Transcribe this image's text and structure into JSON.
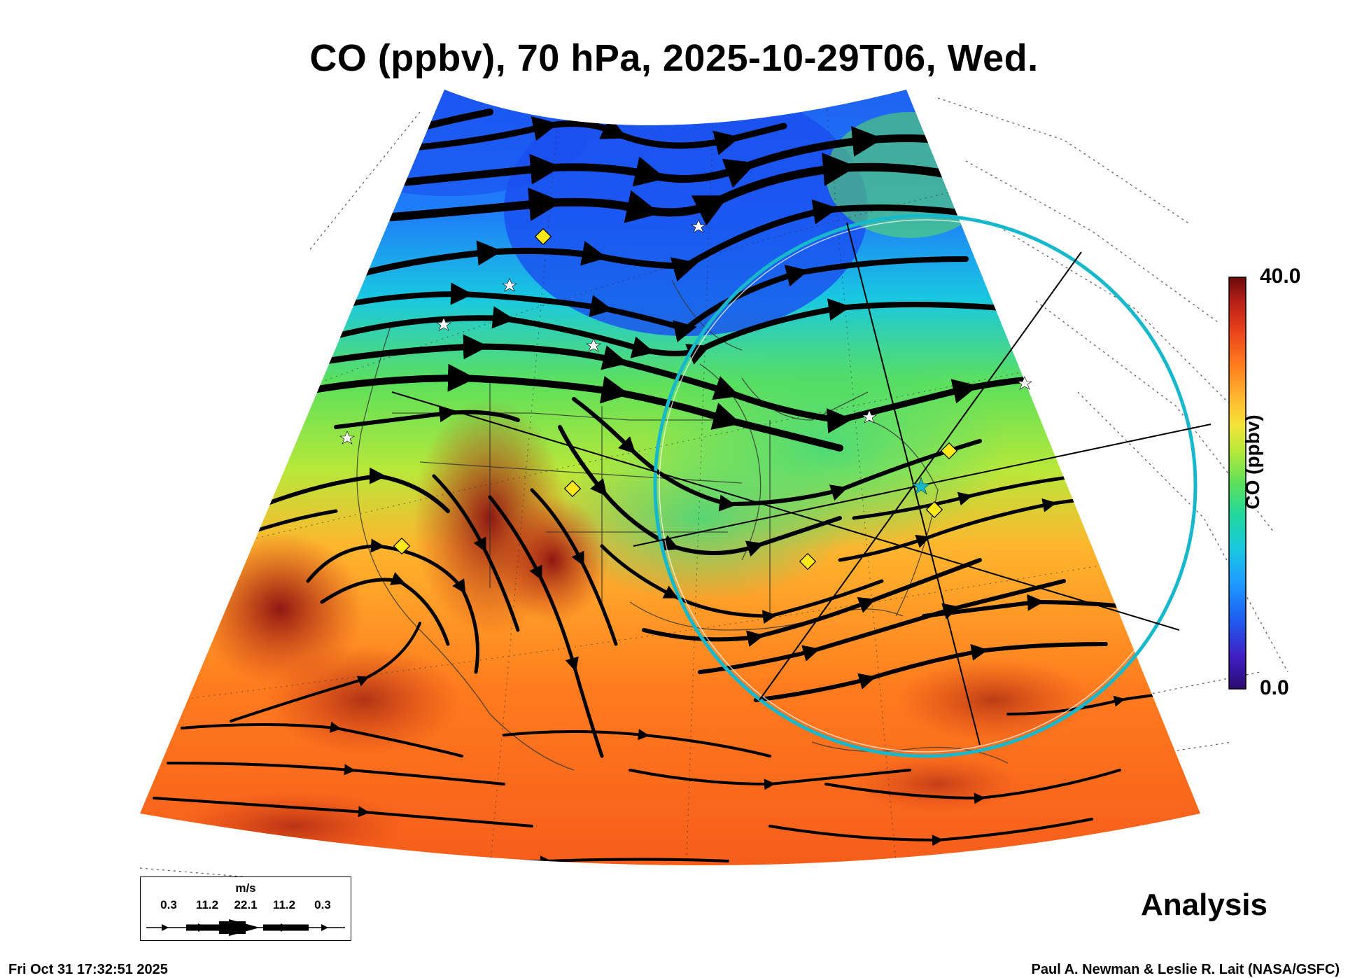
{
  "title": "CO (ppbv), 70 hPa, 2025-10-29T06, Wed.",
  "colorbar": {
    "max_label": "40.0",
    "min_label": "0.0",
    "axis_label": "CO (ppbv)",
    "colors": [
      "#2a0a6e",
      "#3f1fc4",
      "#1e5ff2",
      "#1f9cff",
      "#19c8e0",
      "#20d8a0",
      "#5ee05a",
      "#b8e83a",
      "#f4e43a",
      "#ffb52e",
      "#ff7a1e",
      "#e8421a",
      "#b8201a",
      "#6a0a0a"
    ]
  },
  "wind_legend": {
    "unit": "m/s",
    "values": [
      "0.3",
      "11.2",
      "22.1",
      "11.2",
      "0.3"
    ]
  },
  "analysis_label": "Analysis",
  "footer": {
    "timestamp": "Fri Oct 31 17:32:51 2025",
    "credit": "Paul A. Newman & Leslie R. Lait (NASA/GSFC)"
  },
  "map": {
    "range_ring_color": "#18b8cc",
    "marker_color": "#ffe81a"
  }
}
